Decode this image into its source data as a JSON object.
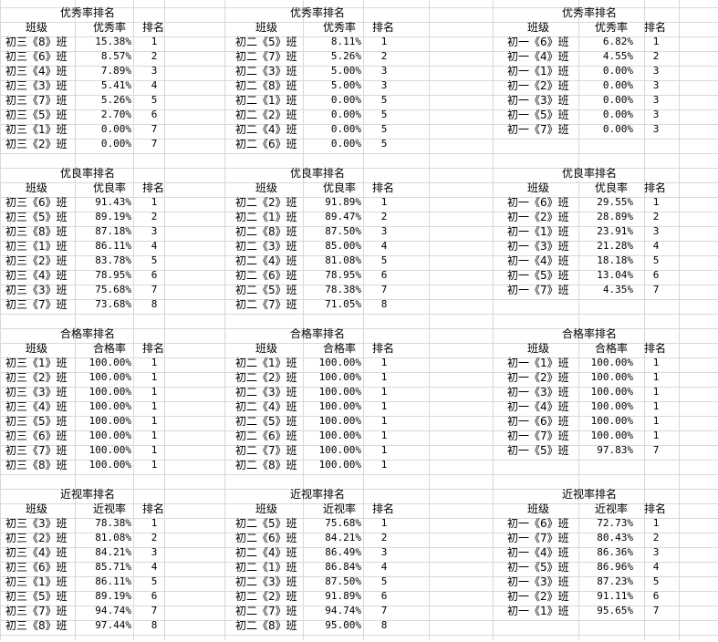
{
  "header_labels": {
    "class": "班级",
    "rank": "排名"
  },
  "sections": [
    {
      "title": "优秀率排名",
      "metric": "优秀率",
      "groups": [
        [
          [
            "初三《8》班",
            "15.38%",
            "1"
          ],
          [
            "初三《6》班",
            "8.57%",
            "2"
          ],
          [
            "初三《4》班",
            "7.89%",
            "3"
          ],
          [
            "初三《3》班",
            "5.41%",
            "4"
          ],
          [
            "初三《7》班",
            "5.26%",
            "5"
          ],
          [
            "初三《5》班",
            "2.70%",
            "6"
          ],
          [
            "初三《1》班",
            "0.00%",
            "7"
          ],
          [
            "初三《2》班",
            "0.00%",
            "7"
          ]
        ],
        [
          [
            "初二《5》班",
            "8.11%",
            "1"
          ],
          [
            "初二《7》班",
            "5.26%",
            "2"
          ],
          [
            "初二《3》班",
            "5.00%",
            "3"
          ],
          [
            "初二《8》班",
            "5.00%",
            "3"
          ],
          [
            "初二《1》班",
            "0.00%",
            "5"
          ],
          [
            "初二《2》班",
            "0.00%",
            "5"
          ],
          [
            "初二《4》班",
            "0.00%",
            "5"
          ],
          [
            "初二《6》班",
            "0.00%",
            "5"
          ]
        ],
        [
          [
            "初一《6》班",
            "6.82%",
            "1"
          ],
          [
            "初一《4》班",
            "4.55%",
            "2"
          ],
          [
            "初一《1》班",
            "0.00%",
            "3"
          ],
          [
            "初一《2》班",
            "0.00%",
            "3"
          ],
          [
            "初一《3》班",
            "0.00%",
            "3"
          ],
          [
            "初一《5》班",
            "0.00%",
            "3"
          ],
          [
            "初一《7》班",
            "0.00%",
            "3"
          ]
        ]
      ]
    },
    {
      "title": "优良率排名",
      "metric": "优良率",
      "groups": [
        [
          [
            "初三《6》班",
            "91.43%",
            "1"
          ],
          [
            "初三《5》班",
            "89.19%",
            "2"
          ],
          [
            "初三《8》班",
            "87.18%",
            "3"
          ],
          [
            "初三《1》班",
            "86.11%",
            "4"
          ],
          [
            "初三《2》班",
            "83.78%",
            "5"
          ],
          [
            "初三《4》班",
            "78.95%",
            "6"
          ],
          [
            "初三《3》班",
            "75.68%",
            "7"
          ],
          [
            "初三《7》班",
            "73.68%",
            "8"
          ]
        ],
        [
          [
            "初二《2》班",
            "91.89%",
            "1"
          ],
          [
            "初二《1》班",
            "89.47%",
            "2"
          ],
          [
            "初二《8》班",
            "87.50%",
            "3"
          ],
          [
            "初二《3》班",
            "85.00%",
            "4"
          ],
          [
            "初二《4》班",
            "81.08%",
            "5"
          ],
          [
            "初二《6》班",
            "78.95%",
            "6"
          ],
          [
            "初二《5》班",
            "78.38%",
            "7"
          ],
          [
            "初二《7》班",
            "71.05%",
            "8"
          ]
        ],
        [
          [
            "初一《6》班",
            "29.55%",
            "1"
          ],
          [
            "初一《2》班",
            "28.89%",
            "2"
          ],
          [
            "初一《1》班",
            "23.91%",
            "3"
          ],
          [
            "初一《3》班",
            "21.28%",
            "4"
          ],
          [
            "初一《4》班",
            "18.18%",
            "5"
          ],
          [
            "初一《5》班",
            "13.04%",
            "6"
          ],
          [
            "初一《7》班",
            "4.35%",
            "7"
          ]
        ]
      ]
    },
    {
      "title": "合格率排名",
      "metric": "合格率",
      "groups": [
        [
          [
            "初三《1》班",
            "100.00%",
            "1"
          ],
          [
            "初三《2》班",
            "100.00%",
            "1"
          ],
          [
            "初三《3》班",
            "100.00%",
            "1"
          ],
          [
            "初三《4》班",
            "100.00%",
            "1"
          ],
          [
            "初三《5》班",
            "100.00%",
            "1"
          ],
          [
            "初三《6》班",
            "100.00%",
            "1"
          ],
          [
            "初三《7》班",
            "100.00%",
            "1"
          ],
          [
            "初三《8》班",
            "100.00%",
            "1"
          ]
        ],
        [
          [
            "初二《1》班",
            "100.00%",
            "1"
          ],
          [
            "初二《2》班",
            "100.00%",
            "1"
          ],
          [
            "初二《3》班",
            "100.00%",
            "1"
          ],
          [
            "初二《4》班",
            "100.00%",
            "1"
          ],
          [
            "初二《5》班",
            "100.00%",
            "1"
          ],
          [
            "初二《6》班",
            "100.00%",
            "1"
          ],
          [
            "初二《7》班",
            "100.00%",
            "1"
          ],
          [
            "初二《8》班",
            "100.00%",
            "1"
          ]
        ],
        [
          [
            "初一《1》班",
            "100.00%",
            "1"
          ],
          [
            "初一《2》班",
            "100.00%",
            "1"
          ],
          [
            "初一《3》班",
            "100.00%",
            "1"
          ],
          [
            "初一《4》班",
            "100.00%",
            "1"
          ],
          [
            "初一《6》班",
            "100.00%",
            "1"
          ],
          [
            "初一《7》班",
            "100.00%",
            "1"
          ],
          [
            "初一《5》班",
            "97.83%",
            "7"
          ]
        ]
      ]
    },
    {
      "title": "近视率排名",
      "metric": "近视率",
      "groups": [
        [
          [
            "初三《3》班",
            "78.38%",
            "1"
          ],
          [
            "初三《2》班",
            "81.08%",
            "2"
          ],
          [
            "初三《4》班",
            "84.21%",
            "3"
          ],
          [
            "初三《6》班",
            "85.71%",
            "4"
          ],
          [
            "初三《1》班",
            "86.11%",
            "5"
          ],
          [
            "初三《5》班",
            "89.19%",
            "6"
          ],
          [
            "初三《7》班",
            "94.74%",
            "7"
          ],
          [
            "初三《8》班",
            "97.44%",
            "8"
          ]
        ],
        [
          [
            "初二《5》班",
            "75.68%",
            "1"
          ],
          [
            "初二《6》班",
            "84.21%",
            "2"
          ],
          [
            "初二《4》班",
            "86.49%",
            "3"
          ],
          [
            "初二《1》班",
            "86.84%",
            "4"
          ],
          [
            "初二《3》班",
            "87.50%",
            "5"
          ],
          [
            "初二《2》班",
            "91.89%",
            "6"
          ],
          [
            "初二《7》班",
            "94.74%",
            "7"
          ],
          [
            "初二《8》班",
            "95.00%",
            "8"
          ]
        ],
        [
          [
            "初一《6》班",
            "72.73%",
            "1"
          ],
          [
            "初一《7》班",
            "80.43%",
            "2"
          ],
          [
            "初一《4》班",
            "86.36%",
            "3"
          ],
          [
            "初一《5》班",
            "86.96%",
            "4"
          ],
          [
            "初一《3》班",
            "87.23%",
            "5"
          ],
          [
            "初一《2》班",
            "91.11%",
            "6"
          ],
          [
            "初一《1》班",
            "95.65%",
            "7"
          ]
        ]
      ]
    }
  ]
}
